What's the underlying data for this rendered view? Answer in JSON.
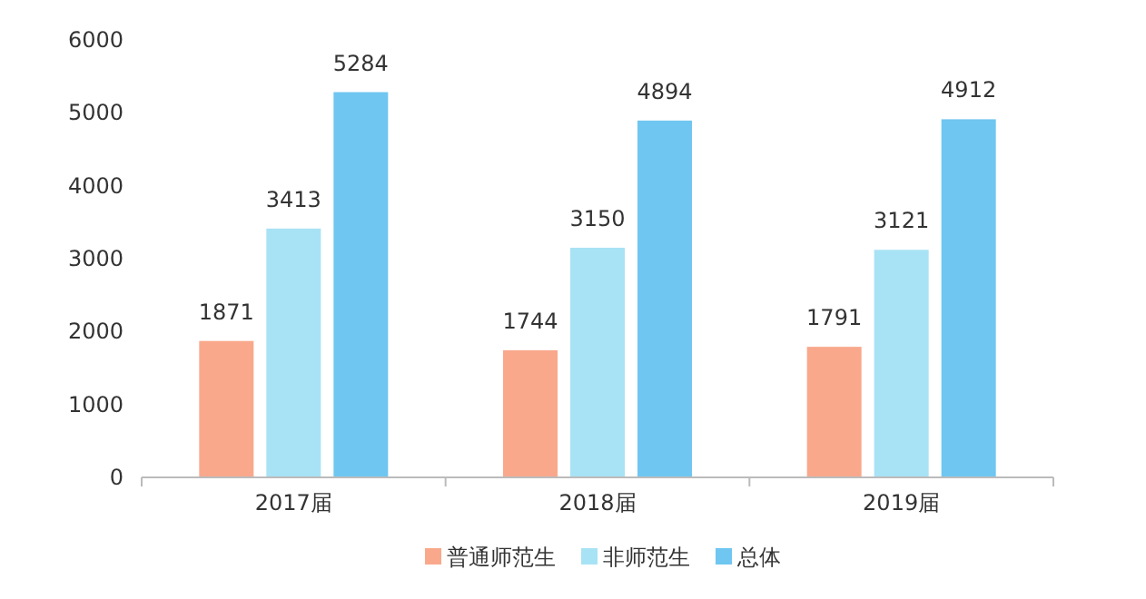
{
  "chart_data": {
    "type": "bar",
    "categories": [
      "2017届",
      "2018届",
      "2019届"
    ],
    "series": [
      {
        "name": "普通师范生",
        "color": "#f9a88c",
        "values": [
          1871,
          1744,
          1791
        ]
      },
      {
        "name": "非师范生",
        "color": "#a8e2f5",
        "values": [
          3413,
          3150,
          3121
        ]
      },
      {
        "name": "总体",
        "color": "#6fc6f0",
        "values": [
          5284,
          4894,
          4912
        ]
      }
    ],
    "ylim": [
      0,
      6000
    ],
    "yticks": [
      0,
      1000,
      2000,
      3000,
      4000,
      5000,
      6000
    ],
    "data_labels": true,
    "legend": "bottom",
    "grid": false
  }
}
